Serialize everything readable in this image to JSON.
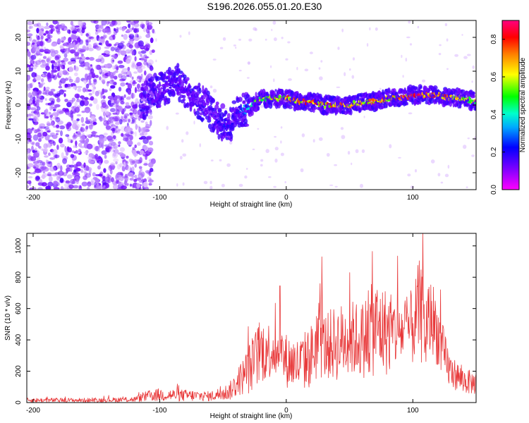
{
  "title": "S196.2026.055.01.20.E30",
  "chart_data": [
    {
      "type": "heatmap",
      "title": "S196.2026.055.01.20.E30",
      "xlabel": "Height of straight line (km)",
      "ylabel": "Frequency (Hz)",
      "xlim": [
        -205,
        150
      ],
      "ylim": [
        -25,
        25
      ],
      "xticks": [
        -200,
        -100,
        0,
        100
      ],
      "yticks": [
        -20,
        -10,
        0,
        10,
        20
      ],
      "colorbar": {
        "label": "Normalized spectral amplitude",
        "range": [
          0.0,
          0.9
        ],
        "ticks": [
          "0.0",
          "0.2",
          "0.4",
          "0.6",
          "0.8"
        ],
        "tick_values": [
          0.0,
          0.2,
          0.4,
          0.6,
          0.8
        ]
      },
      "ridge": {
        "description": "Doppler frequency centroid vs height",
        "x": [
          -115,
          -105,
          -95,
          -88,
          -82,
          -75,
          -68,
          -60,
          -52,
          -45,
          -38,
          -30,
          -20,
          -10,
          0,
          10,
          20,
          30,
          40,
          50,
          60,
          70,
          80,
          90,
          100,
          110,
          120,
          130,
          140,
          150
        ],
        "y": [
          0,
          4,
          5,
          8,
          5,
          3,
          1,
          -2,
          -5,
          -6,
          -2,
          -1,
          2,
          2,
          2,
          1,
          1,
          0,
          0,
          0,
          1,
          1,
          2,
          2,
          3,
          3,
          3,
          2,
          2,
          1
        ],
        "peak_amplitude": [
          0.05,
          0.15,
          0.2,
          0.25,
          0.2,
          0.2,
          0.15,
          0.15,
          0.3,
          0.3,
          0.3,
          0.45,
          0.7,
          0.75,
          0.8,
          0.8,
          0.85,
          0.85,
          0.8,
          0.75,
          0.75,
          0.8,
          0.8,
          0.85,
          0.9,
          0.9,
          0.85,
          0.8,
          0.75,
          0.7
        ]
      },
      "noise_region_x": [
        -205,
        -115
      ],
      "noise_amplitude": 0.15
    },
    {
      "type": "line",
      "xlabel": "Height of straight line (km)",
      "ylabel": "SNR (10 * v/v)",
      "xlim": [
        -205,
        150
      ],
      "ylim": [
        0,
        1080
      ],
      "xticks": [
        -200,
        -100,
        0,
        100
      ],
      "yticks": [
        0,
        200,
        400,
        600,
        800,
        1000
      ],
      "color": "#e8393a",
      "series": [
        {
          "name": "SNR",
          "envelope_x": [
            -205,
            -150,
            -120,
            -110,
            -100,
            -80,
            -60,
            -45,
            -35,
            -28,
            -20,
            -10,
            0,
            10,
            20,
            25,
            30,
            40,
            50,
            60,
            70,
            80,
            90,
            100,
            105,
            110,
            115,
            120,
            125,
            130,
            140,
            150
          ],
          "envelope_mean": [
            15,
            15,
            20,
            40,
            50,
            45,
            40,
            70,
            160,
            230,
            330,
            340,
            270,
            240,
            300,
            420,
            360,
            380,
            410,
            400,
            480,
            450,
            450,
            480,
            600,
            450,
            560,
            430,
            280,
            200,
            140,
            120
          ],
          "envelope_amplitude": [
            20,
            20,
            25,
            50,
            60,
            55,
            45,
            80,
            160,
            250,
            300,
            250,
            250,
            250,
            300,
            400,
            300,
            350,
            350,
            350,
            450,
            400,
            300,
            350,
            450,
            400,
            350,
            300,
            250,
            150,
            120,
            100
          ]
        }
      ],
      "peaks": [
        {
          "x": -30,
          "y": 485
        },
        {
          "x": -5,
          "y": 745
        },
        {
          "x": 28,
          "y": 930
        },
        {
          "x": 50,
          "y": 830
        },
        {
          "x": 68,
          "y": 965
        },
        {
          "x": 88,
          "y": 935
        },
        {
          "x": 108,
          "y": 1080
        },
        {
          "x": 122,
          "y": 720
        }
      ]
    }
  ],
  "colors": {
    "line": "#e8393a",
    "low": "#7b00ff",
    "background": "#ffffff"
  }
}
